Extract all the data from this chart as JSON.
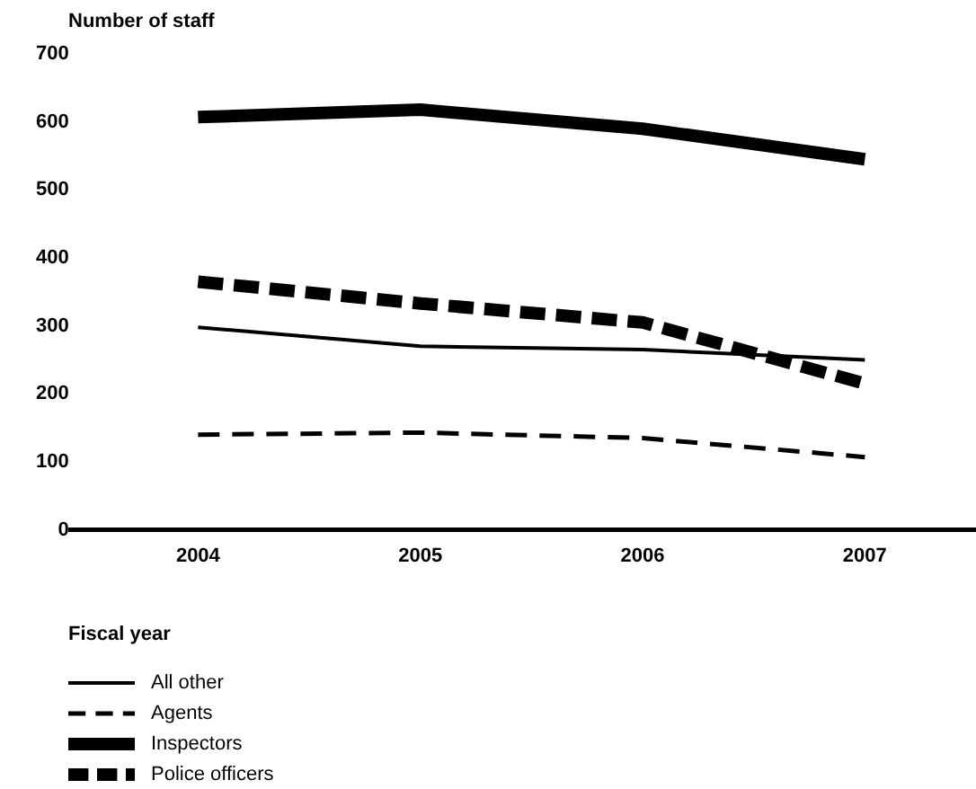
{
  "chart_data": {
    "type": "line",
    "ylabel": "Number of staff",
    "xlabel": "Fiscal year",
    "categories": [
      "2004",
      "2005",
      "2006",
      "2007"
    ],
    "series": [
      {
        "name": "All other",
        "color": "#000000",
        "line_style": "solid",
        "values": [
          298,
          270,
          265,
          250
        ]
      },
      {
        "name": "Agents",
        "color": "#000000",
        "line_style": "dashed",
        "values": [
          140,
          143,
          135,
          107
        ]
      },
      {
        "name": "Inspectors",
        "color": "#000000",
        "line_style": "solid",
        "values": [
          607,
          618,
          590,
          545
        ]
      },
      {
        "name": "Police officers",
        "color": "#000000",
        "line_style": "dashed",
        "values": [
          365,
          333,
          305,
          215
        ]
      }
    ],
    "ylim": [
      0,
      700
    ],
    "yticks": [
      0,
      100,
      200,
      300,
      400,
      500,
      600,
      700
    ],
    "grid": false,
    "legend": "bottom left",
    "marker": "none"
  }
}
